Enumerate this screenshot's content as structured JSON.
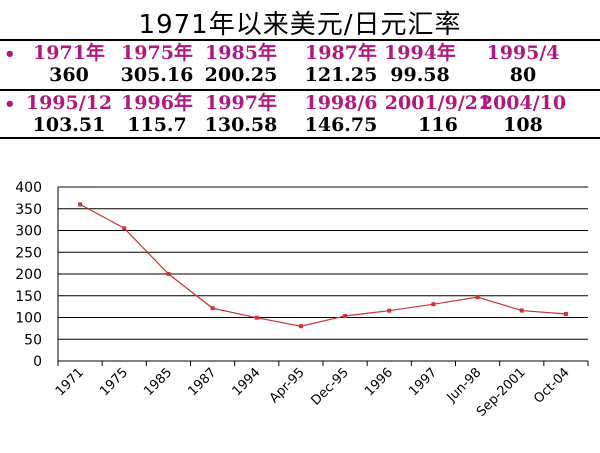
{
  "title": "1971年以来美元/日元汇率",
  "table_rows": [
    {
      "bullet": "•",
      "cells": [
        {
          "label": "1971年",
          "value": "360"
        },
        {
          "label": "1975年",
          "value": "305.16"
        },
        {
          "label": "1985年",
          "value": "200.25"
        },
        {
          "label": "1987年",
          "value": "121.25"
        },
        {
          "label": "1994年",
          "value": "99.58"
        },
        {
          "label": "1995/4",
          "value": "80"
        }
      ]
    },
    {
      "bullet": "•",
      "cells": [
        {
          "label": "1995/12",
          "value": "103.51"
        },
        {
          "label": "1996年",
          "value": "115.7"
        },
        {
          "label": "1997年",
          "value": "130.58"
        },
        {
          "label": "1998/6",
          "value": "146.75"
        },
        {
          "label": "2001/9/21",
          "value": "116"
        },
        {
          "label": "2004/10",
          "value": "108"
        }
      ]
    }
  ],
  "chart_data": {
    "type": "line",
    "categories": [
      "1971",
      "1975",
      "1985",
      "1987",
      "1994",
      "Apr-95",
      "Dec-95",
      "1996",
      "1997",
      "Jun-98",
      "Sep-2001",
      "Oct-04"
    ],
    "series": [
      {
        "values": [
          360,
          305.16,
          200.25,
          121.25,
          99.58,
          80,
          103.51,
          115.7,
          130.58,
          146.75,
          116,
          108
        ]
      }
    ],
    "ylim": [
      0,
      400
    ],
    "yticks": [
      0,
      50,
      100,
      150,
      200,
      250,
      300,
      350,
      400
    ],
    "grid": "horizontal",
    "line_color": "#cc3333",
    "legend": "none"
  }
}
